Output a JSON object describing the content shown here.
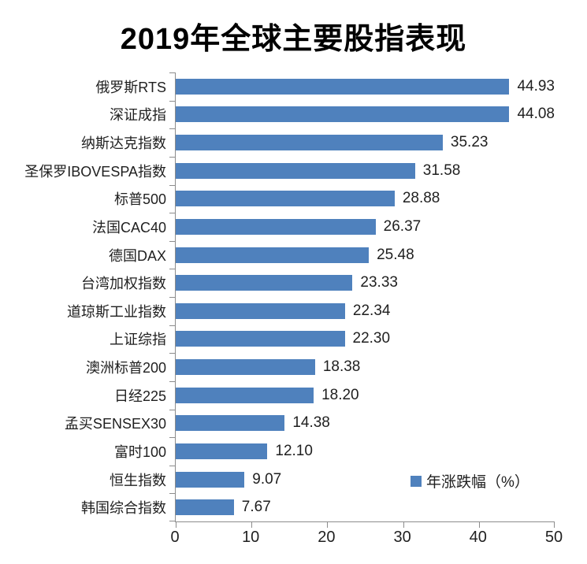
{
  "title": "2019年全球主要股指表现",
  "legend": {
    "label": "年涨跌幅（%）",
    "marker_color": "#4f81bd"
  },
  "colors": {
    "bar": "#4f81bd",
    "axis": "#8c8c8c",
    "text": "#1f1f1f",
    "title_text": "#000000",
    "background": "#ffffff"
  },
  "chart_data": {
    "type": "bar",
    "orientation": "horizontal",
    "title": "2019年全球主要股指表现",
    "categories": [
      "俄罗斯RTS",
      "深证成指",
      "纳斯达克指数",
      "圣保罗IBOVESPA指数",
      "标普500",
      "法国CAC40",
      "德国DAX",
      "台湾加权指数",
      "道琼斯工业指数",
      "上证综指",
      "澳洲标普200",
      "日经225",
      "孟买SENSEX30",
      "富时100",
      "恒生指数",
      "韩国综合指数"
    ],
    "values": [
      44.93,
      44.08,
      35.23,
      31.58,
      28.88,
      26.37,
      25.48,
      23.33,
      22.34,
      22.3,
      18.38,
      18.2,
      14.38,
      12.1,
      9.07,
      7.67
    ],
    "value_label_decimals": 2,
    "series_name": "年涨跌幅（%）",
    "xlabel": "",
    "ylabel": "",
    "xlim": [
      0,
      50
    ],
    "xticks": [
      0,
      10,
      20,
      30,
      40,
      50
    ],
    "grid": false,
    "value_labels": true,
    "legend_position": "inside-bottom-right",
    "bar_color": "#4f81bd"
  }
}
